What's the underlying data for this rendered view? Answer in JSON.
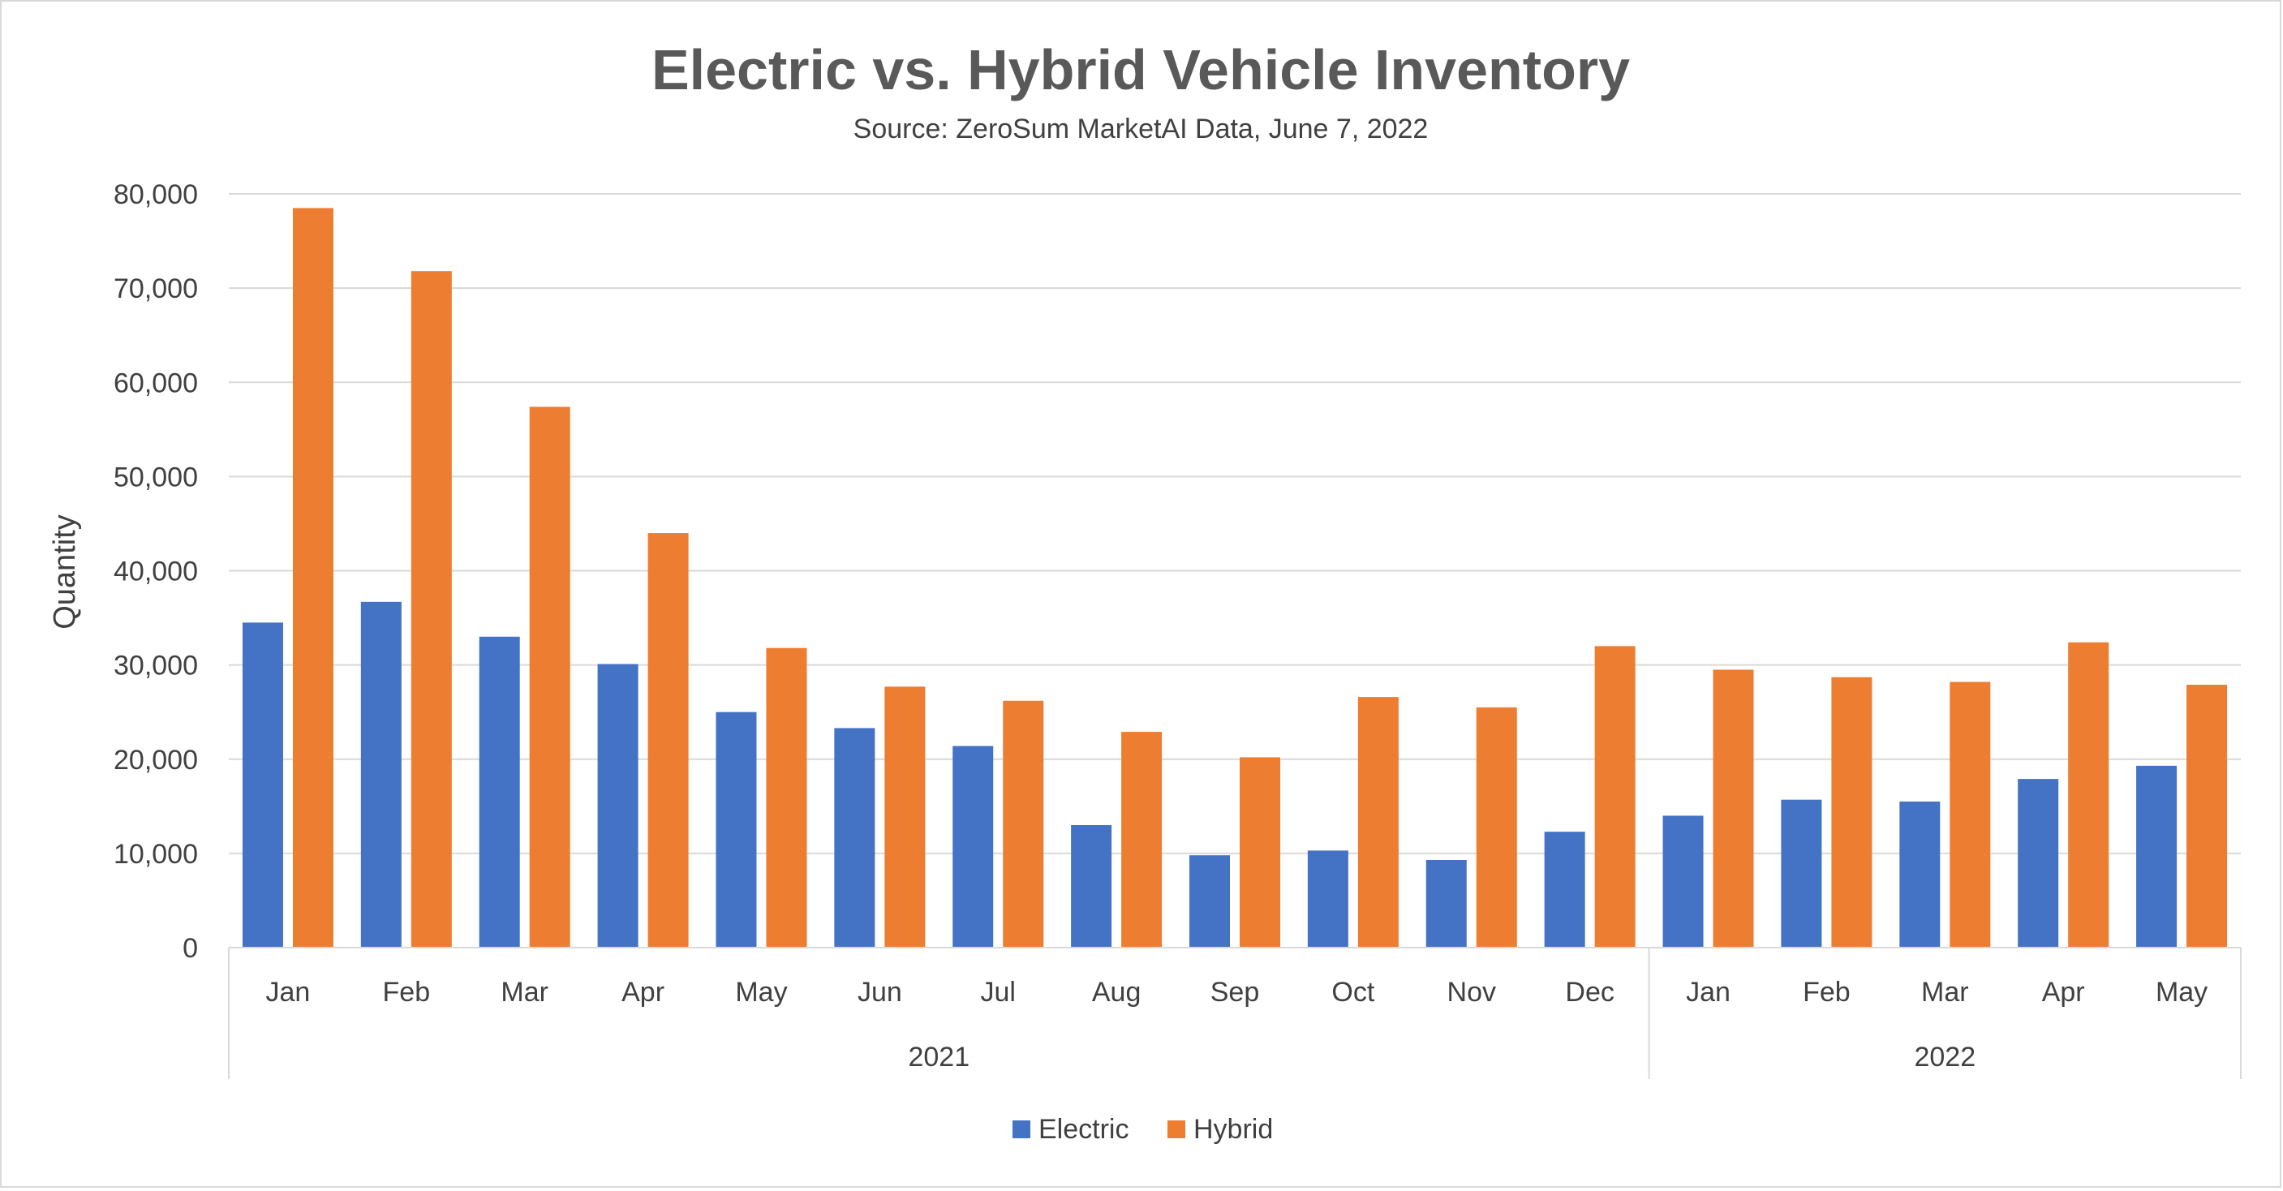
{
  "chart_data": {
    "type": "bar",
    "title": "Electric vs. Hybrid Vehicle Inventory",
    "subtitle": "Source: ZeroSum MarketAI Data, June 7, 2022",
    "xlabel": "",
    "ylabel": "Quantity",
    "ylim": [
      0,
      80000
    ],
    "yticks": [
      0,
      10000,
      20000,
      30000,
      40000,
      50000,
      60000,
      70000,
      80000
    ],
    "ytick_labels": [
      "0",
      "10,000",
      "20,000",
      "30,000",
      "40,000",
      "50,000",
      "60,000",
      "70,000",
      "80,000"
    ],
    "grid": true,
    "legend_position": "bottom",
    "categories": [
      "Jan",
      "Feb",
      "Mar",
      "Apr",
      "May",
      "Jun",
      "Jul",
      "Aug",
      "Sep",
      "Oct",
      "Nov",
      "Dec",
      "Jan",
      "Feb",
      "Mar",
      "Apr",
      "May"
    ],
    "groups": [
      {
        "label": "2021",
        "count": 12
      },
      {
        "label": "2022",
        "count": 5
      }
    ],
    "series": [
      {
        "name": "Electric",
        "color": "#4472C4",
        "values": [
          34500,
          36700,
          33000,
          30100,
          25000,
          23300,
          21400,
          13000,
          9800,
          10300,
          9300,
          12300,
          14000,
          15700,
          15500,
          17900,
          19300
        ]
      },
      {
        "name": "Hybrid",
        "color": "#ED7D31",
        "values": [
          78500,
          71800,
          57400,
          44000,
          31800,
          27700,
          26200,
          22900,
          20200,
          26600,
          25500,
          32000,
          29500,
          28700,
          28200,
          32400,
          27900
        ]
      }
    ]
  }
}
